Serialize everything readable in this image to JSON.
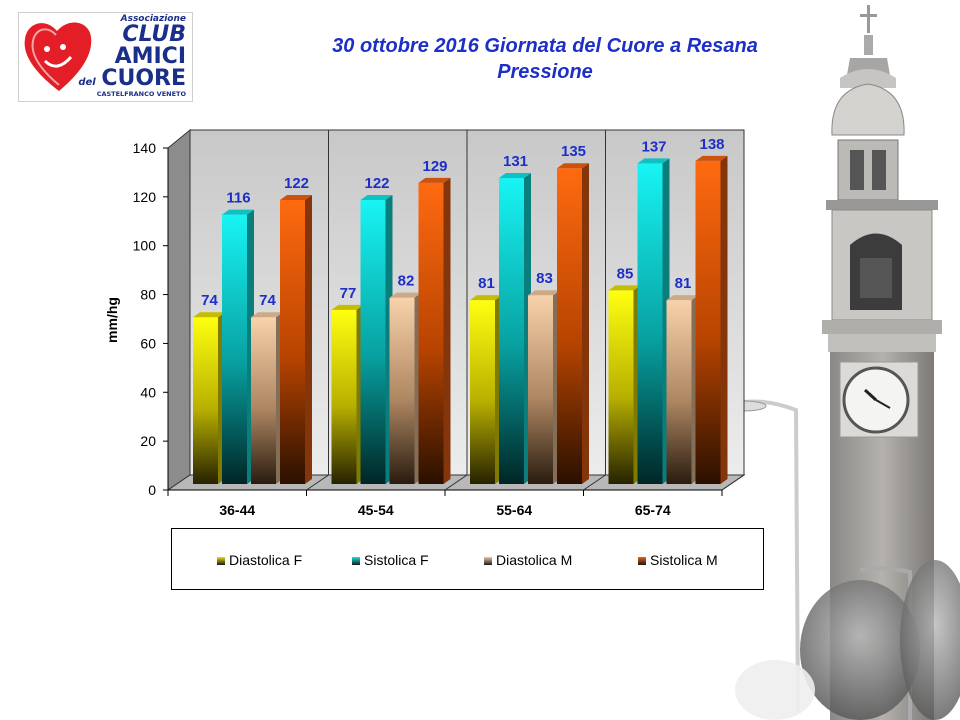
{
  "logo": {
    "line1": "Associazione",
    "line2": "CLUB",
    "line3": "AMICI",
    "line4a": "del",
    "line4b": "CUORE",
    "line5": "CASTELFRANCO VENETO"
  },
  "title": {
    "line1": "30 ottobre 2016 Giornata del Cuore a Resana",
    "line2": "Pressione"
  },
  "chart_data": {
    "type": "bar",
    "title": "30 ottobre 2016 Giornata del Cuore a Resana — Pressione",
    "ylabel": "mm/hg",
    "xlabel": "",
    "ylim": [
      0,
      140
    ],
    "yticks": [
      0,
      20,
      40,
      60,
      80,
      100,
      120,
      140
    ],
    "grid": false,
    "legend_position": "bottom",
    "categories": [
      "36-44",
      "45-54",
      "55-64",
      "65-74"
    ],
    "series": [
      {
        "name": "Diastolica F",
        "color": "#e8e000",
        "values": [
          74,
          77,
          81,
          85
        ]
      },
      {
        "name": "Sistolica F",
        "color": "#12e3e3",
        "values": [
          116,
          122,
          131,
          137
        ]
      },
      {
        "name": "Diastolica M",
        "color": "#f0c8a0",
        "values": [
          74,
          82,
          83,
          81
        ]
      },
      {
        "name": "Sistolica M",
        "color": "#f06010",
        "values": [
          122,
          129,
          135,
          138
        ]
      }
    ]
  }
}
